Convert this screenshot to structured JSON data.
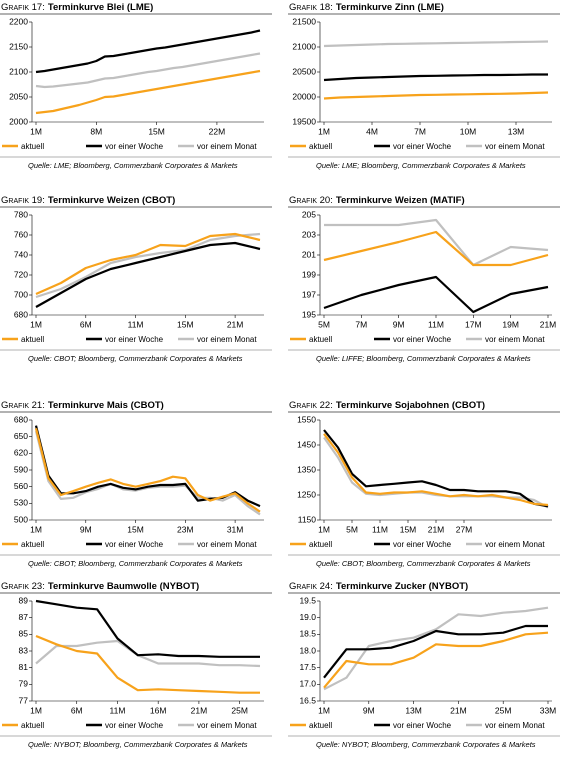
{
  "chart_data": [
    {
      "type": "line",
      "label": "Grafik 17:",
      "title": "Terminkurve Blei (LME)",
      "categories": [
        "1M",
        null,
        null,
        null,
        null,
        null,
        null,
        "8M",
        null,
        null,
        null,
        null,
        null,
        null,
        "15M",
        null,
        null,
        null,
        null,
        null,
        null,
        "22M",
        null,
        null,
        null,
        null,
        null
      ],
      "series": [
        {
          "name": "aktuell",
          "color": "#f7a21b",
          "values": [
            2018,
            2020,
            2022,
            2026,
            2030,
            2034,
            2039,
            2044,
            2050,
            2051,
            2054,
            2057,
            2060,
            2063,
            2066,
            2069,
            2072,
            2075,
            2078,
            2081,
            2084,
            2087,
            2090,
            2093,
            2096,
            2099,
            2102
          ]
        },
        {
          "name": "vor einer Woche",
          "color": "#000000",
          "values": [
            2100,
            2102,
            2105,
            2108,
            2111,
            2114,
            2117,
            2122,
            2131,
            2132,
            2135,
            2138,
            2141,
            2144,
            2147,
            2149,
            2152,
            2155,
            2158,
            2161,
            2164,
            2167,
            2170,
            2173,
            2176,
            2179,
            2183
          ]
        },
        {
          "name": "vor einem Monat",
          "color": "#c0c0c0",
          "values": [
            2072,
            2070,
            2071,
            2073,
            2075,
            2077,
            2079,
            2083,
            2087,
            2088,
            2091,
            2094,
            2097,
            2100,
            2102,
            2105,
            2108,
            2110,
            2113,
            2116,
            2119,
            2122,
            2125,
            2128,
            2131,
            2134,
            2137
          ]
        }
      ],
      "ylim": [
        2000,
        2200
      ],
      "yticks": [
        2000,
        2050,
        2100,
        2150,
        2200
      ],
      "source": "Quelle: LME; Bloomberg, Commerzbank Corporates & Markets"
    },
    {
      "type": "line",
      "label": "Grafik 18:",
      "title": "Terminkurve Zinn (LME)",
      "categories": [
        "1M",
        null,
        null,
        "4M",
        null,
        null,
        "7M",
        null,
        null,
        "10M",
        null,
        null,
        "13M",
        null,
        null
      ],
      "series": [
        {
          "name": "aktuell",
          "color": "#f7a21b",
          "values": [
            19970,
            19990,
            20000,
            20010,
            20020,
            20030,
            20040,
            20045,
            20050,
            20055,
            20060,
            20065,
            20070,
            20080,
            20090
          ]
        },
        {
          "name": "vor einer Woche",
          "color": "#000000",
          "values": [
            20340,
            20360,
            20380,
            20390,
            20400,
            20410,
            20420,
            20425,
            20430,
            20435,
            20440,
            20440,
            20445,
            20450,
            20450
          ]
        },
        {
          "name": "vor einem Monat",
          "color": "#c0c0c0",
          "values": [
            21020,
            21030,
            21040,
            21050,
            21060,
            21065,
            21070,
            21075,
            21080,
            21085,
            21090,
            21095,
            21100,
            21105,
            21110
          ]
        }
      ],
      "ylim": [
        19500,
        21500
      ],
      "yticks": [
        19500,
        20000,
        20500,
        21000,
        21500
      ],
      "source": "Quelle: LME; Bloomberg, Commerzbank Corporates & Markets"
    },
    {
      "type": "line",
      "label": "Grafik 19:",
      "title": "Terminkurve Weizen (CBOT)",
      "categories": [
        "1M",
        null,
        "6M",
        null,
        "11M",
        null,
        "15M",
        null,
        "21M",
        null
      ],
      "series": [
        {
          "name": "aktuell",
          "color": "#f7a21b",
          "values": [
            701,
            712,
            727,
            735,
            740,
            750,
            749,
            759,
            761,
            755
          ]
        },
        {
          "name": "vor einer Woche",
          "color": "#000000",
          "values": [
            688,
            702,
            716,
            726,
            732,
            738,
            744,
            750,
            752,
            746
          ]
        },
        {
          "name": "vor einem Monat",
          "color": "#c0c0c0",
          "values": [
            698,
            706,
            718,
            732,
            738,
            742,
            745,
            755,
            759,
            761
          ]
        }
      ],
      "ylim": [
        680,
        780
      ],
      "yticks": [
        680,
        700,
        720,
        740,
        760,
        780
      ],
      "source": "Quelle: CBOT; Bloomberg, Commerzbank Corporates & Markets"
    },
    {
      "type": "line",
      "label": "Grafik 20:",
      "title": "Terminkurve Weizen (MATIF)",
      "categories": [
        "5M",
        "7M",
        "9M",
        "11M",
        "17M",
        "19M",
        "21M"
      ],
      "series": [
        {
          "name": "aktuell",
          "color": "#f7a21b",
          "values": [
            200.5,
            201.4,
            202.3,
            203.3,
            200,
            200,
            201
          ]
        },
        {
          "name": "vor einer Woche",
          "color": "#000000",
          "values": [
            195.7,
            197,
            198,
            198.8,
            195.3,
            197.1,
            197.8
          ]
        },
        {
          "name": "vor einem Monat",
          "color": "#c0c0c0",
          "values": [
            204,
            204,
            204,
            204.5,
            200,
            201.8,
            201.5
          ]
        }
      ],
      "ylim": [
        195,
        205
      ],
      "yticks": [
        195,
        197,
        199,
        201,
        203,
        205
      ],
      "source": "Quelle: LIFFE; Bloomberg, Commerzbank Corporates & Markets"
    },
    {
      "type": "line",
      "label": "Grafik 21:",
      "title": "Terminkurve Mais (CBOT)",
      "categories": [
        "1M",
        null,
        null,
        null,
        "9M",
        null,
        null,
        null,
        "15M",
        null,
        null,
        null,
        "23M",
        null,
        null,
        null,
        "31M",
        null,
        null
      ],
      "series": [
        {
          "name": "aktuell",
          "color": "#f7a21b",
          "values": [
            665,
            575,
            545,
            552,
            560,
            567,
            573,
            565,
            560,
            565,
            570,
            578,
            575,
            545,
            535,
            542,
            548,
            530,
            515
          ]
        },
        {
          "name": "vor einer Woche",
          "color": "#000000",
          "values": [
            670,
            580,
            548,
            548,
            552,
            560,
            565,
            558,
            555,
            560,
            563,
            563,
            565,
            535,
            538,
            540,
            550,
            535,
            525
          ]
        },
        {
          "name": "vor einem Monat",
          "color": "#c0c0c0",
          "values": [
            660,
            570,
            538,
            540,
            550,
            556,
            565,
            555,
            553,
            558,
            560,
            560,
            562,
            540,
            540,
            535,
            545,
            525,
            510
          ]
        }
      ],
      "ylim": [
        500,
        680
      ],
      "yticks": [
        500,
        530,
        560,
        590,
        620,
        650,
        680
      ],
      "source": "Quelle: CBOT; Bloomberg, Commerzbank Corporates & Markets"
    },
    {
      "type": "line",
      "label": "Grafik 22:",
      "title": "Terminkurve Sojabohnen (CBOT)",
      "categories": [
        "1M",
        null,
        "5M",
        null,
        "11M",
        null,
        "15M",
        null,
        "21M",
        null,
        "27M",
        null,
        null,
        null,
        null,
        null,
        null
      ],
      "series": [
        {
          "name": "aktuell",
          "color": "#f7a21b",
          "values": [
            1495,
            1420,
            1320,
            1260,
            1255,
            1260,
            1260,
            1265,
            1255,
            1245,
            1250,
            1245,
            1250,
            1240,
            1230,
            1215,
            1210
          ]
        },
        {
          "name": "vor einer Woche",
          "color": "#000000",
          "values": [
            1510,
            1440,
            1335,
            1285,
            1290,
            1295,
            1300,
            1305,
            1290,
            1270,
            1270,
            1265,
            1265,
            1265,
            1255,
            1215,
            1205
          ]
        },
        {
          "name": "vor einem Monat",
          "color": "#c0c0c0",
          "values": [
            1480,
            1400,
            1300,
            1255,
            1250,
            1255,
            1260,
            1260,
            1250,
            1245,
            1245,
            1245,
            1245,
            1240,
            1240,
            1230,
            1200
          ]
        }
      ],
      "ylim": [
        1150,
        1550
      ],
      "yticks": [
        1150,
        1250,
        1350,
        1450,
        1550
      ],
      "source": "Quelle: CBOT; Bloomberg, Commerzbank Corporates & Markets"
    },
    {
      "type": "line",
      "label": "Grafik 23:",
      "title": "Terminkurve Baumwolle (NYBOT)",
      "categories": [
        "1M",
        null,
        "6M",
        null,
        "11M",
        null,
        "16M",
        null,
        "21M",
        null,
        "25M",
        null
      ],
      "series": [
        {
          "name": "aktuell",
          "color": "#f7a21b",
          "values": [
            84.8,
            83.8,
            83.0,
            82.7,
            79.8,
            78.3,
            78.4,
            78.3,
            78.2,
            78.1,
            78.0,
            78.0
          ]
        },
        {
          "name": "vor einer Woche",
          "color": "#000000",
          "values": [
            89.0,
            88.6,
            88.2,
            88.0,
            84.5,
            82.5,
            82.6,
            82.4,
            82.4,
            82.3,
            82.3,
            82.3
          ]
        },
        {
          "name": "vor einem Monat",
          "color": "#c0c0c0",
          "values": [
            81.5,
            83.6,
            83.6,
            84.0,
            84.2,
            82.5,
            81.5,
            81.5,
            81.5,
            81.3,
            81.3,
            81.2
          ]
        }
      ],
      "ylim": [
        77,
        89
      ],
      "yticks": [
        77,
        79,
        81,
        83,
        85,
        87,
        89
      ],
      "source": "Quelle: NYBOT; Bloomberg, Commerzbank Corporates & Markets"
    },
    {
      "type": "line",
      "label": "Grafik 24:",
      "title": "Terminkurve Zucker (NYBOT)",
      "categories": [
        "1M",
        null,
        "9M",
        null,
        "13M",
        null,
        "21M",
        null,
        "25M",
        null,
        "33M"
      ],
      "series": [
        {
          "name": "aktuell",
          "color": "#f7a21b",
          "values": [
            16.9,
            17.7,
            17.6,
            17.6,
            17.8,
            18.2,
            18.15,
            18.15,
            18.3,
            18.5,
            18.55
          ]
        },
        {
          "name": "vor einer Woche",
          "color": "#000000",
          "values": [
            17.2,
            18.05,
            18.05,
            18.1,
            18.3,
            18.6,
            18.5,
            18.5,
            18.55,
            18.75,
            18.75
          ]
        },
        {
          "name": "vor einem Monat",
          "color": "#c0c0c0",
          "values": [
            16.85,
            17.2,
            18.15,
            18.3,
            18.4,
            18.65,
            19.1,
            19.05,
            19.15,
            19.2,
            19.3
          ]
        }
      ],
      "ylim": [
        16.5,
        19.5
      ],
      "yticks": [
        16.5,
        {
          "value": 17,
          "label": "17.0"
        },
        17.5,
        {
          "value": 18,
          "label": "18.0"
        },
        18.5,
        {
          "value": 19,
          "label": "19.0"
        },
        19.5
      ],
      "source": "Quelle: NYBOT; Bloomberg, Commerzbank Corporates & Markets"
    }
  ]
}
